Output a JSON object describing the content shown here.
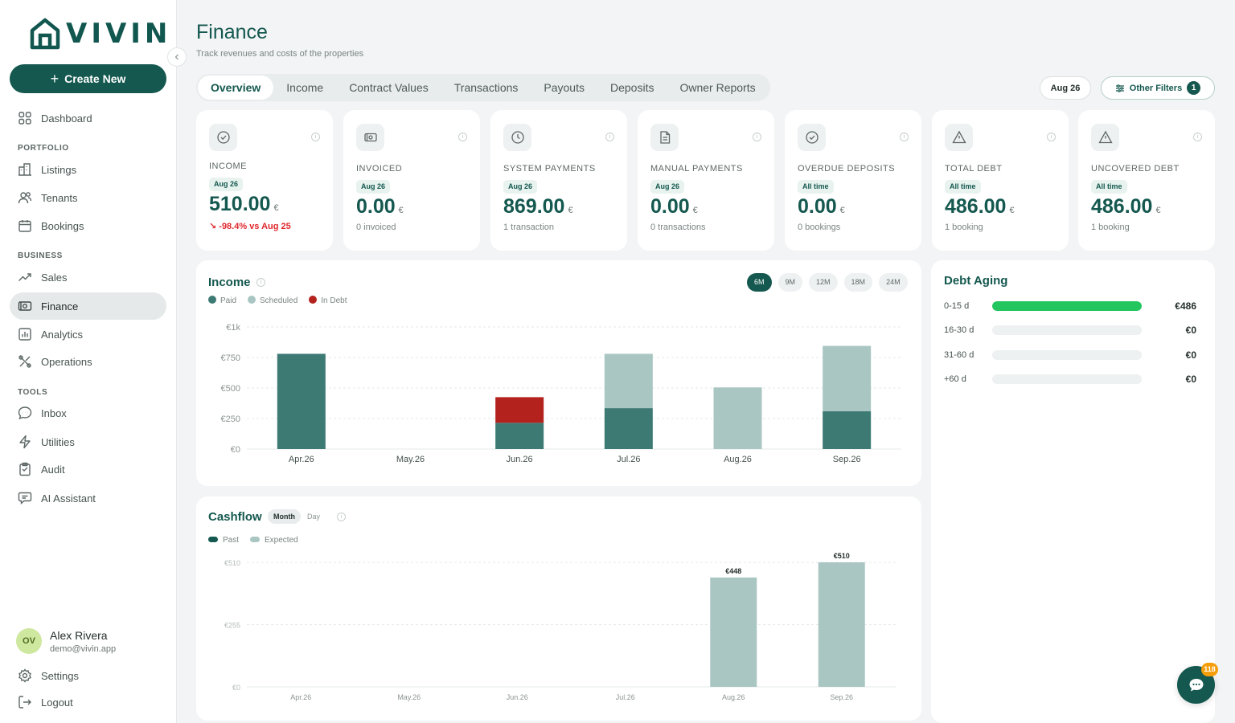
{
  "brand": {
    "name": "VIVIN"
  },
  "sidebar": {
    "create_label": "Create New",
    "dashboard": "Dashboard",
    "sections": {
      "portfolio": "PORTFOLIO",
      "business": "BUSINESS",
      "tools": "TOOLS"
    },
    "items": {
      "listings": "Listings",
      "tenants": "Tenants",
      "bookings": "Bookings",
      "sales": "Sales",
      "finance": "Finance",
      "analytics": "Analytics",
      "operations": "Operations",
      "inbox": "Inbox",
      "utilities": "Utilities",
      "audit": "Audit",
      "ai_assistant": "AI Assistant"
    },
    "user": {
      "initials": "OV",
      "name": "Alex Rivera",
      "email": "demo@vivin.app"
    },
    "settings": "Settings",
    "logout": "Logout"
  },
  "header": {
    "title": "Finance",
    "subtitle": "Track revenues and costs of the properties",
    "tabs": [
      "Overview",
      "Income",
      "Contract Values",
      "Transactions",
      "Payouts",
      "Deposits",
      "Owner Reports"
    ],
    "active_tab": "Overview",
    "date_filter": "Aug 26",
    "filters_label": "Other Filters",
    "filters_count": "1"
  },
  "kpis": [
    {
      "label": "INCOME",
      "period": "Aug 26",
      "value": "510.00",
      "currency": "€",
      "sub": "-98.4% vs Aug 25",
      "icon": "check-circle-icon"
    },
    {
      "label": "INVOICED",
      "period": "Aug 26",
      "value": "0.00",
      "currency": "€",
      "sub": "0 invoiced",
      "icon": "banknote-icon"
    },
    {
      "label": "SYSTEM PAYMENTS",
      "period": "Aug 26",
      "value": "869.00",
      "currency": "€",
      "sub": "1 transaction",
      "icon": "clock-icon"
    },
    {
      "label": "MANUAL PAYMENTS",
      "period": "Aug 26",
      "value": "0.00",
      "currency": "€",
      "sub": "0 transactions",
      "icon": "document-icon"
    },
    {
      "label": "OVERDUE DEPOSITS",
      "period": "All time",
      "value": "0.00",
      "currency": "€",
      "sub": "0 bookings",
      "icon": "check-circle-icon"
    },
    {
      "label": "TOTAL DEBT",
      "period": "All time",
      "value": "486.00",
      "currency": "€",
      "sub": "1 booking",
      "icon": "warning-icon"
    },
    {
      "label": "UNCOVERED DEBT",
      "period": "All time",
      "value": "486.00",
      "currency": "€",
      "sub": "1 booking",
      "icon": "warning-icon"
    }
  ],
  "income_panel": {
    "title": "Income",
    "legend": [
      "Paid",
      "Scheduled",
      "In Debt"
    ],
    "ranges": [
      "6M",
      "9M",
      "12M",
      "18M",
      "24M"
    ],
    "active_range": "6M"
  },
  "cashflow_panel": {
    "title": "Cashflow",
    "modes": [
      "Month",
      "Day"
    ],
    "active_mode": "Month",
    "legend": [
      "Past",
      "Expected"
    ]
  },
  "debt_aging": {
    "title": "Debt Aging",
    "rows": [
      {
        "label": "0-15 d",
        "value": "€486",
        "fill": 1.0
      },
      {
        "label": "16-30 d",
        "value": "€0",
        "fill": 0
      },
      {
        "label": "31-60 d",
        "value": "€0",
        "fill": 0
      },
      {
        "label": "+60 d",
        "value": "€0",
        "fill": 0
      }
    ]
  },
  "chat": {
    "badge": "118"
  },
  "colors": {
    "brand": "#14584f",
    "paid": "#3e7a74",
    "scheduled": "#a9c6c3",
    "in_debt": "#b3221c",
    "aging_fill": "#22c55e"
  },
  "chart_data": [
    {
      "type": "bar",
      "title": "Income",
      "stacked": true,
      "categories": [
        "Apr.26",
        "May.26",
        "Jun.26",
        "Jul.26",
        "Aug.26",
        "Sep.26"
      ],
      "series": [
        {
          "name": "Paid",
          "values": [
            780,
            0,
            215,
            335,
            0,
            310
          ]
        },
        {
          "name": "Scheduled",
          "values": [
            0,
            0,
            0,
            445,
            505,
            535
          ]
        },
        {
          "name": "In Debt",
          "values": [
            0,
            0,
            210,
            0,
            0,
            0
          ]
        }
      ],
      "yticks": [
        "€0",
        "€250",
        "€500",
        "€750",
        "€1k"
      ],
      "ylim": [
        0,
        1000
      ],
      "grid": true,
      "legend": "top-left"
    },
    {
      "type": "bar",
      "title": "Cashflow",
      "categories": [
        "Apr.26",
        "May.26",
        "Jun.26",
        "Jul.26",
        "Aug.26",
        "Sep.26"
      ],
      "series": [
        {
          "name": "Past",
          "values": [
            0,
            0,
            0,
            0,
            0,
            0
          ]
        },
        {
          "name": "Expected",
          "values": [
            0,
            0,
            0,
            0,
            448,
            510
          ]
        }
      ],
      "data_labels": [
        "",
        "",
        "",
        "",
        "€448",
        "€510"
      ],
      "yticks": [
        "€0",
        "€255",
        "€510"
      ],
      "ylim": [
        0,
        510
      ],
      "grid": true,
      "legend": "top-left"
    }
  ]
}
